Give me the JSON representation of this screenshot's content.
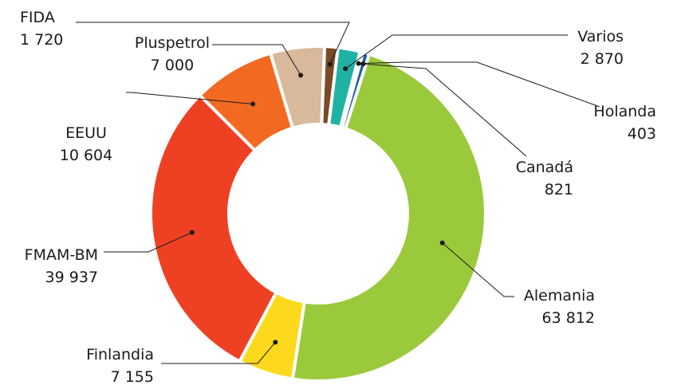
{
  "chart_data": {
    "type": "pie",
    "variant": "donut",
    "title": "",
    "legend": "none",
    "series": [
      {
        "name": "FIDA",
        "value": 1720,
        "value_label": "1 720",
        "color": "#7a4a26"
      },
      {
        "name": "Varios",
        "value": 2870,
        "value_label": "2 870",
        "color": "#1fb3a4"
      },
      {
        "name": "Holanda",
        "value": 403,
        "value_label": "403",
        "color": "#29a9e1"
      },
      {
        "name": "Canadá",
        "value": 821,
        "value_label": "821",
        "color": "#1e5fa5"
      },
      {
        "name": "Alemania",
        "value": 63812,
        "value_label": "63 812",
        "color": "#9bc93c"
      },
      {
        "name": "Finlandia",
        "value": 7155,
        "value_label": "7 155",
        "color": "#fcd91c"
      },
      {
        "name": "FMAM-BM",
        "value": 39937,
        "value_label": "39 937",
        "color": "#ee4123"
      },
      {
        "name": "EEUU",
        "value": 10604,
        "value_label": "10 604",
        "color": "#f26a21"
      },
      {
        "name": "Pluspetrol",
        "value": 7000,
        "value_label": "7 000",
        "color": "#d9b99b"
      }
    ]
  }
}
